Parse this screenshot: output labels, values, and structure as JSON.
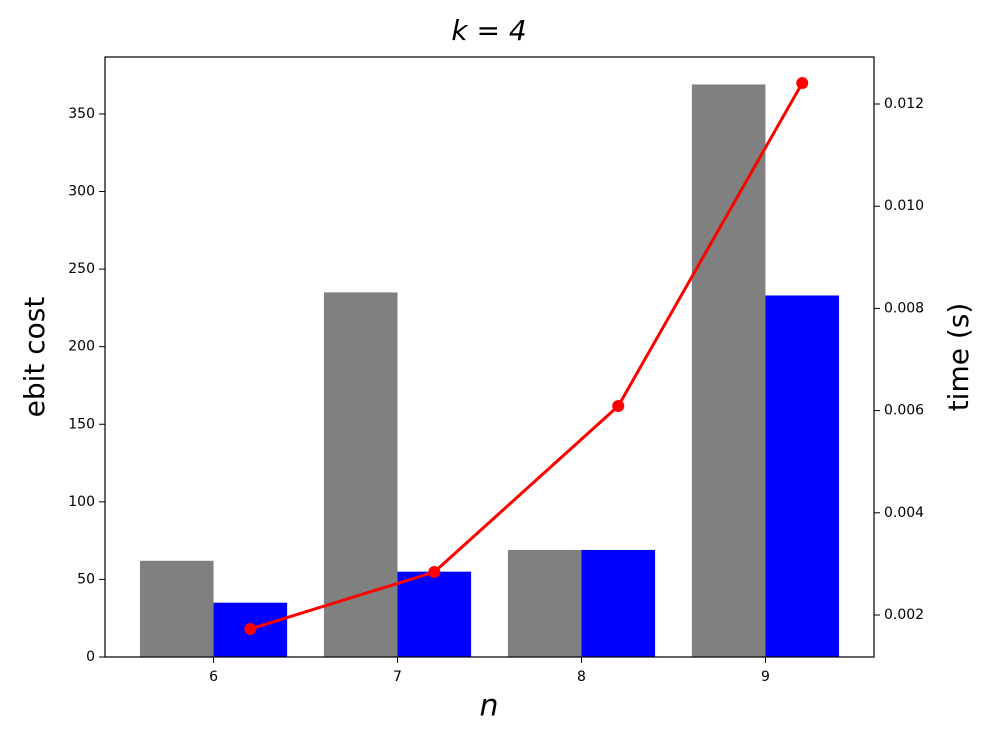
{
  "chart_data": {
    "type": "bar_line",
    "title": "k = 4",
    "x_label": "n",
    "y_label": "ebit cost",
    "y2_label": "time (s)",
    "x": [
      6,
      7,
      8,
      9
    ],
    "xlim": [
      5.41,
      9.59
    ],
    "xticks": [
      6,
      7,
      8,
      9
    ],
    "ylim": [
      0,
      386.7
    ],
    "yticks": [
      0,
      50,
      100,
      150,
      200,
      250,
      300,
      350
    ],
    "y2lim": [
      0.001178,
      0.01292
    ],
    "y2ticks": [
      {
        "value": 0.002,
        "label": "0.002"
      },
      {
        "value": 0.004,
        "label": "0.004"
      },
      {
        "value": 0.006,
        "label": "0.006"
      },
      {
        "value": 0.008,
        "label": "0.008"
      },
      {
        "value": 0.01,
        "label": "0.010"
      },
      {
        "value": 0.012,
        "label": "0.012"
      }
    ],
    "series": [
      {
        "type": "bar",
        "color": "#808080",
        "values": [
          62,
          235,
          69,
          369
        ]
      },
      {
        "type": "bar",
        "color": "#0000ff",
        "values": [
          35,
          55,
          69,
          233
        ]
      },
      {
        "type": "line",
        "color": "#ff0000",
        "axis": "y2",
        "x": [
          6.2,
          7.2,
          8.2,
          9.2
        ],
        "values": [
          0.001726,
          0.002841,
          0.00609,
          0.01241
        ]
      }
    ]
  }
}
